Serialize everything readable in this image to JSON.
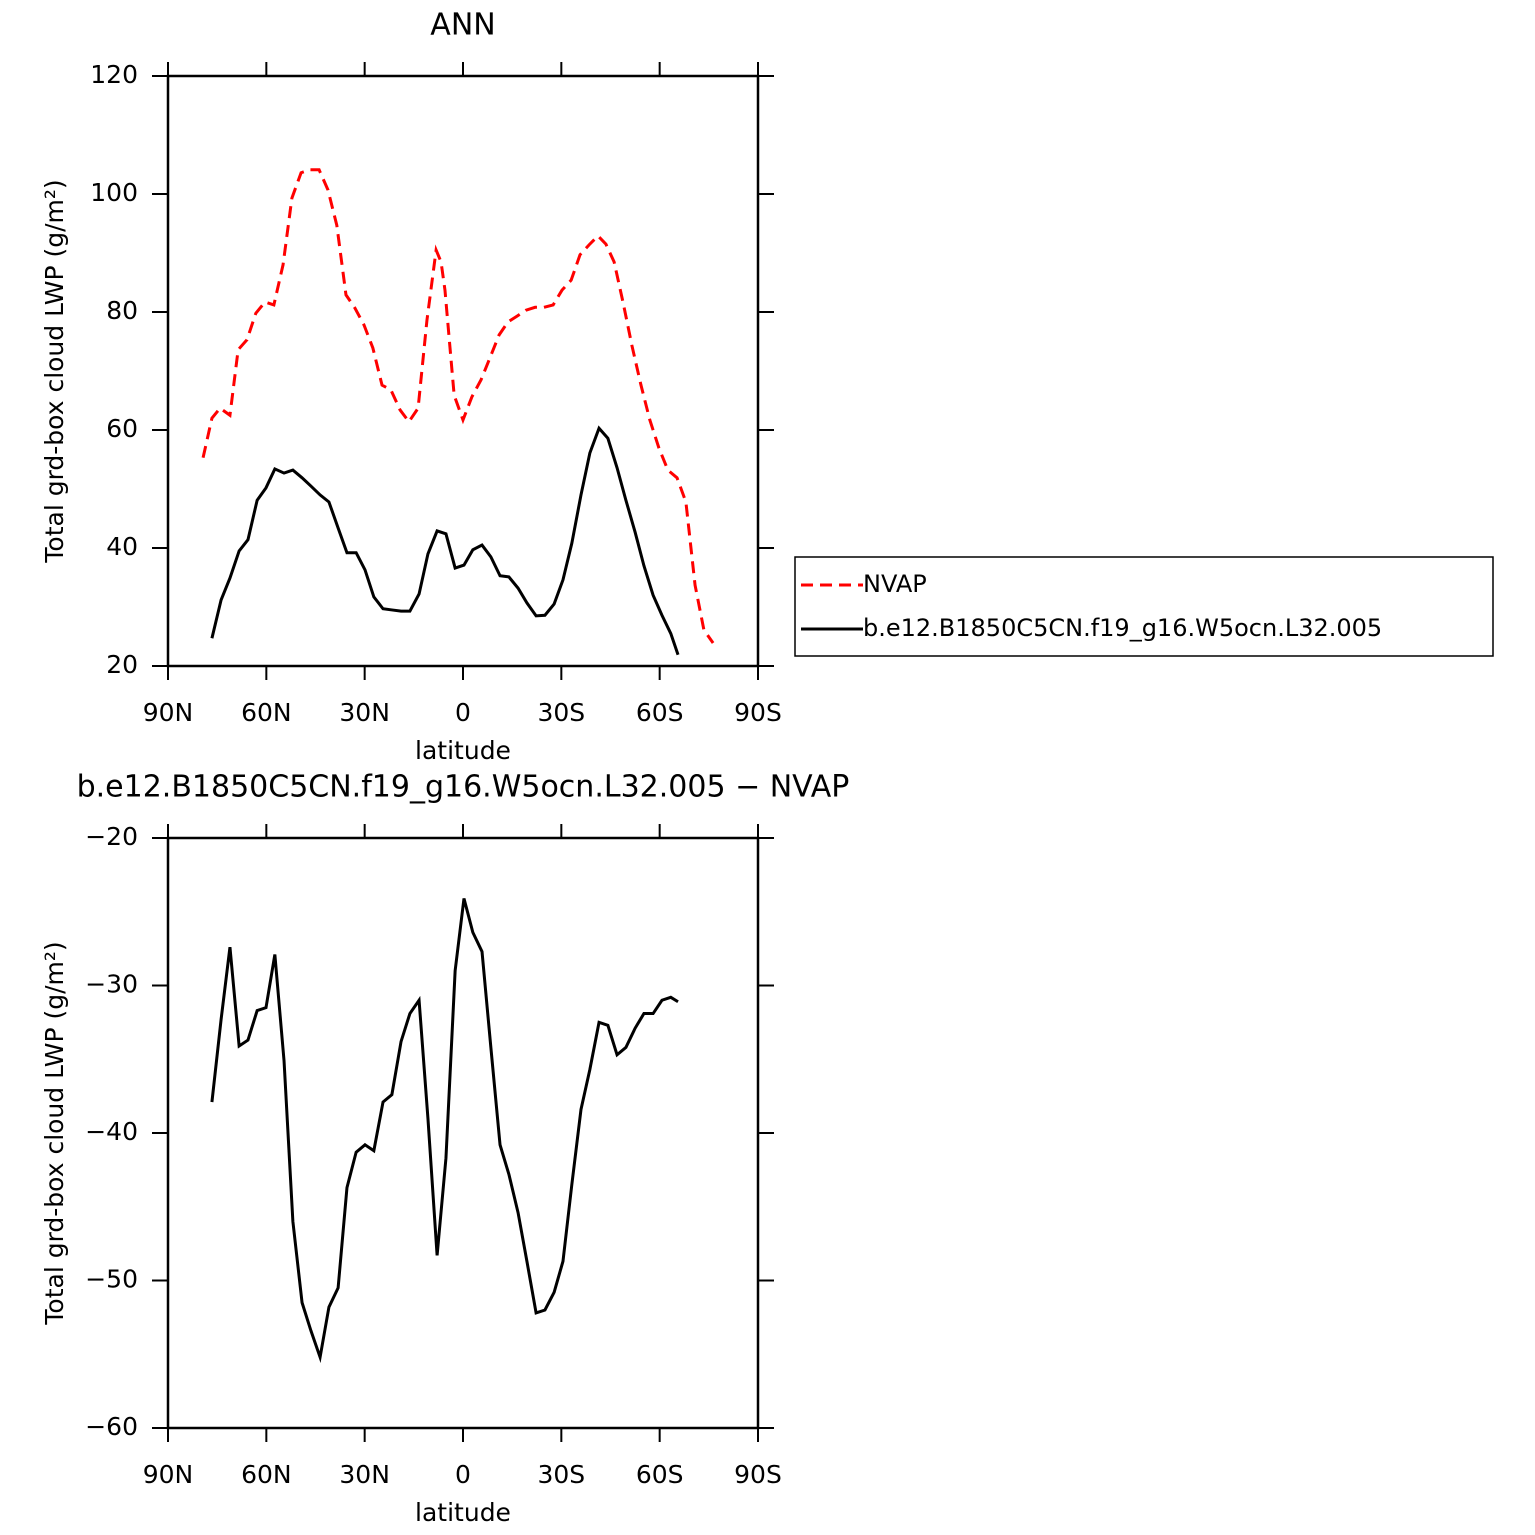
{
  "chart_data": [
    {
      "type": "line",
      "title": "ANN",
      "xlabel": "latitude",
      "ylabel": "Total grd-box cloud LWP (g/m²)",
      "xlim": [
        90,
        -90
      ],
      "xticks": [
        {
          "value": 90,
          "label": "90N"
        },
        {
          "value": 60,
          "label": "60N"
        },
        {
          "value": 30,
          "label": "30N"
        },
        0,
        {
          "value": -30,
          "label": "30S"
        },
        {
          "value": -60,
          "label": "60S"
        },
        {
          "value": -90,
          "label": "90S"
        }
      ],
      "ylim": [
        20,
        120
      ],
      "yticks": [
        20,
        40,
        60,
        80,
        100,
        120
      ],
      "series": [
        {
          "name": "NVAP",
          "color": "#ff0000",
          "linestyle": "dashed",
          "x": [
            79.3,
            76.6,
            74.1,
            71.1,
            68.6,
            65.9,
            63.2,
            60.4,
            57.7,
            54.9,
            52.2,
            49.4,
            46.7,
            43.9,
            41.2,
            38.5,
            35.7,
            33.0,
            30.2,
            27.5,
            24.7,
            22.0,
            19.2,
            16.5,
            13.7,
            11.0,
            8.2,
            6.7,
            5.5,
            2.7,
            0.0,
            -2.7,
            -5.5,
            -8.2,
            -11.0,
            -13.7,
            -16.5,
            -19.2,
            -22.0,
            -24.7,
            -27.5,
            -30.2,
            -33.0,
            -35.7,
            -38.5,
            -41.2,
            -43.6,
            -46.1,
            -48.8,
            -51.5,
            -54.3,
            -57.0,
            -59.8,
            -62.5,
            -65.3,
            -68.0,
            -70.8,
            -73.5,
            -76.3
          ],
          "values": [
            55.3,
            62.0,
            63.7,
            62.5,
            73.6,
            75.3,
            79.8,
            81.7,
            81.2,
            88.0,
            99.3,
            103.6,
            104.1,
            104.1,
            100.7,
            94.7,
            82.9,
            80.7,
            77.8,
            73.9,
            67.6,
            66.8,
            63.4,
            61.4,
            63.7,
            78.6,
            90.5,
            88.5,
            83.7,
            65.9,
            61.7,
            65.6,
            68.5,
            72.2,
            76.1,
            78.3,
            79.3,
            80.3,
            80.8,
            80.8,
            81.2,
            83.7,
            85.4,
            89.7,
            91.4,
            92.9,
            91.5,
            88.5,
            81.7,
            74.4,
            67.6,
            61.7,
            56.9,
            53.2,
            51.9,
            47.8,
            33.7,
            26.1,
            23.9
          ]
        },
        {
          "name": "b.e12.B1850C5CN.f19_g16.W5ocn.L32.005",
          "color": "#000000",
          "linestyle": "solid",
          "x": [
            76.6,
            73.8,
            71.1,
            68.3,
            65.6,
            62.8,
            60.1,
            57.4,
            54.6,
            51.9,
            49.1,
            46.4,
            43.6,
            40.9,
            38.1,
            35.4,
            32.6,
            29.9,
            27.2,
            24.4,
            21.7,
            18.9,
            16.2,
            13.4,
            10.7,
            7.9,
            5.2,
            2.4,
            -0.3,
            -3.0,
            -5.8,
            -8.5,
            -11.3,
            -14.0,
            -16.8,
            -19.5,
            -22.3,
            -25.0,
            -27.8,
            -30.5,
            -33.2,
            -36.0,
            -38.7,
            -41.5,
            -44.2,
            -47.0,
            -49.7,
            -52.5,
            -55.2,
            -58.0,
            -60.7,
            -63.4,
            -65.6
          ],
          "values": [
            24.7,
            31.2,
            34.9,
            39.5,
            41.4,
            48.1,
            50.2,
            53.4,
            52.7,
            53.2,
            51.9,
            50.5,
            49.0,
            47.8,
            43.4,
            39.2,
            39.2,
            36.3,
            31.7,
            29.7,
            29.5,
            29.3,
            29.3,
            32.2,
            39.0,
            42.9,
            42.4,
            36.6,
            37.1,
            39.7,
            40.5,
            38.5,
            35.3,
            35.1,
            33.2,
            30.7,
            28.5,
            28.6,
            30.5,
            34.6,
            40.8,
            49.0,
            56.1,
            60.3,
            58.6,
            53.6,
            48.1,
            42.7,
            37.0,
            32.0,
            28.6,
            25.5,
            21.9
          ]
        }
      ]
    },
    {
      "type": "line",
      "title": "b.e12.B1850C5CN.f19_g16.W5ocn.L32.005 − NVAP",
      "xlabel": "latitude",
      "ylabel": "Total grd-box cloud LWP (g/m²)",
      "xlim": [
        90,
        -90
      ],
      "xticks": [
        {
          "value": 90,
          "label": "90N"
        },
        {
          "value": 60,
          "label": "60N"
        },
        {
          "value": 30,
          "label": "30N"
        },
        0,
        {
          "value": -30,
          "label": "30S"
        },
        {
          "value": -60,
          "label": "60S"
        },
        {
          "value": -90,
          "label": "90S"
        }
      ],
      "ylim": [
        -60,
        -20
      ],
      "yticks": [
        {
          "value": -60,
          "label": "−60"
        },
        {
          "value": -50,
          "label": "−50"
        },
        {
          "value": -40,
          "label": "−40"
        },
        {
          "value": -30,
          "label": "−30"
        },
        {
          "value": -20,
          "label": "−20"
        }
      ],
      "series": [
        {
          "color": "#000000",
          "linestyle": "solid",
          "x": [
            76.6,
            73.8,
            71.1,
            68.3,
            65.6,
            62.8,
            60.1,
            57.4,
            54.6,
            51.9,
            49.1,
            46.4,
            43.6,
            40.9,
            38.1,
            35.4,
            32.6,
            29.9,
            27.2,
            24.4,
            21.7,
            18.9,
            16.2,
            13.4,
            10.7,
            7.9,
            5.2,
            2.4,
            -0.3,
            -3.0,
            -5.8,
            -8.5,
            -11.3,
            -14.0,
            -16.8,
            -19.5,
            -22.3,
            -25.0,
            -27.8,
            -30.5,
            -33.2,
            -36.0,
            -38.7,
            -41.5,
            -44.2,
            -47.0,
            -49.7,
            -52.5,
            -55.2,
            -58.0,
            -60.7,
            -63.4,
            -65.6
          ],
          "values": [
            -37.9,
            -32.3,
            -27.4,
            -34.1,
            -33.7,
            -31.7,
            -31.5,
            -27.9,
            -35.1,
            -46.0,
            -51.5,
            -53.4,
            -55.2,
            -51.8,
            -50.5,
            -43.7,
            -41.3,
            -40.8,
            -41.2,
            -37.9,
            -37.4,
            -33.8,
            -31.9,
            -31.0,
            -39.0,
            -48.3,
            -41.7,
            -29.0,
            -24.1,
            -26.4,
            -27.7,
            -34.2,
            -40.8,
            -42.8,
            -45.4,
            -48.7,
            -52.2,
            -52.0,
            -50.8,
            -48.7,
            -43.5,
            -38.4,
            -35.7,
            -32.5,
            -32.7,
            -34.7,
            -34.2,
            -32.9,
            -31.9,
            -31.9,
            -31.0,
            -30.8,
            -31.1
          ]
        }
      ]
    }
  ]
}
